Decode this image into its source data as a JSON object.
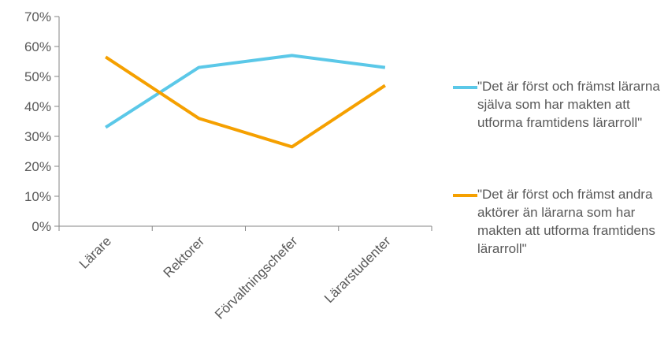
{
  "chart_data": {
    "type": "line",
    "categories": [
      "Lärare",
      "Rektorer",
      "Förvaltningschefer",
      "Lärarstudenter"
    ],
    "series": [
      {
        "name": "\"Det är först och främst lärarna själva som har makten att utforma framtidens lärarroll\"",
        "color": "#5BC8E8",
        "values": [
          33,
          53,
          57,
          53
        ]
      },
      {
        "name": "\"Det är först och främst andra aktörer än lärarna som har makten att utforma framtidens lärarroll\"",
        "color": "#F5A000",
        "values": [
          56.5,
          36,
          26.5,
          47
        ]
      }
    ],
    "title": "",
    "xlabel": "",
    "ylabel": "",
    "ylim": [
      0,
      70
    ],
    "yticks": [
      "0%",
      "10%",
      "20%",
      "30%",
      "40%",
      "50%",
      "60%",
      "70%"
    ],
    "grid": false,
    "legend": "right"
  }
}
